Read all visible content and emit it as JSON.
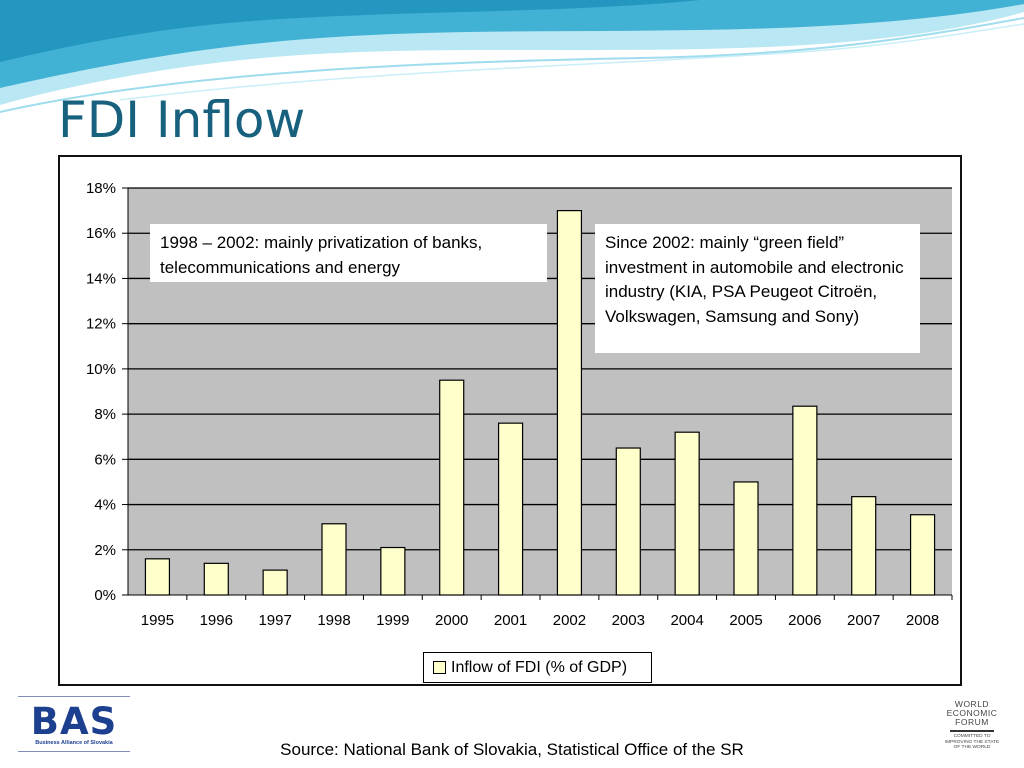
{
  "slide": {
    "title": "FDI Inflow",
    "source": "Source: National Bank of Slovakia, Statistical Office of the SR"
  },
  "logos": {
    "bas": {
      "name": "BAS",
      "subtitle": "Business Alliance of Slovakia",
      "color": "#1d3f8f"
    },
    "wef": {
      "lines": [
        "WORLD",
        "ECONOMIC",
        "FORUM"
      ],
      "tagline": "COMMITTED TO IMPROVING THE STATE OF THE WORLD"
    }
  },
  "theme": {
    "title_color": "#17607e",
    "plot_background": "#c0c0c0",
    "bar_fill": "#ffffcc",
    "bar_stroke": "#000000",
    "wave_colors": [
      "#1a9fc9",
      "#7fd3ea",
      "#d6f1f8"
    ]
  },
  "chart_data": {
    "type": "bar",
    "categories": [
      "1995",
      "1996",
      "1997",
      "1998",
      "1999",
      "2000",
      "2001",
      "2002",
      "2003",
      "2004",
      "2005",
      "2006",
      "2007",
      "2008"
    ],
    "series": [
      {
        "name": "Inflow of FDI (% of GDP)",
        "values": [
          1.6,
          1.4,
          1.1,
          3.15,
          2.1,
          9.5,
          7.6,
          17.0,
          6.5,
          7.2,
          5.0,
          8.35,
          4.35,
          3.55
        ]
      }
    ],
    "ylim": [
      0,
      18
    ],
    "y_ticks": [
      0,
      2,
      4,
      6,
      8,
      10,
      12,
      14,
      16,
      18
    ],
    "y_tick_labels": [
      "0%",
      "2%",
      "4%",
      "6%",
      "8%",
      "10%",
      "12%",
      "14%",
      "16%",
      "18%"
    ],
    "grid": true,
    "legend_position": "bottom",
    "annotations": [
      {
        "text": "1998 – 2002: mainly privatization of banks, telecommunications and energy"
      },
      {
        "text": "Since 2002: mainly “green field” investment in automobile and electronic industry (KIA, PSA Peugeot Citroën, Volkswagen, Samsung and Sony)"
      }
    ]
  }
}
